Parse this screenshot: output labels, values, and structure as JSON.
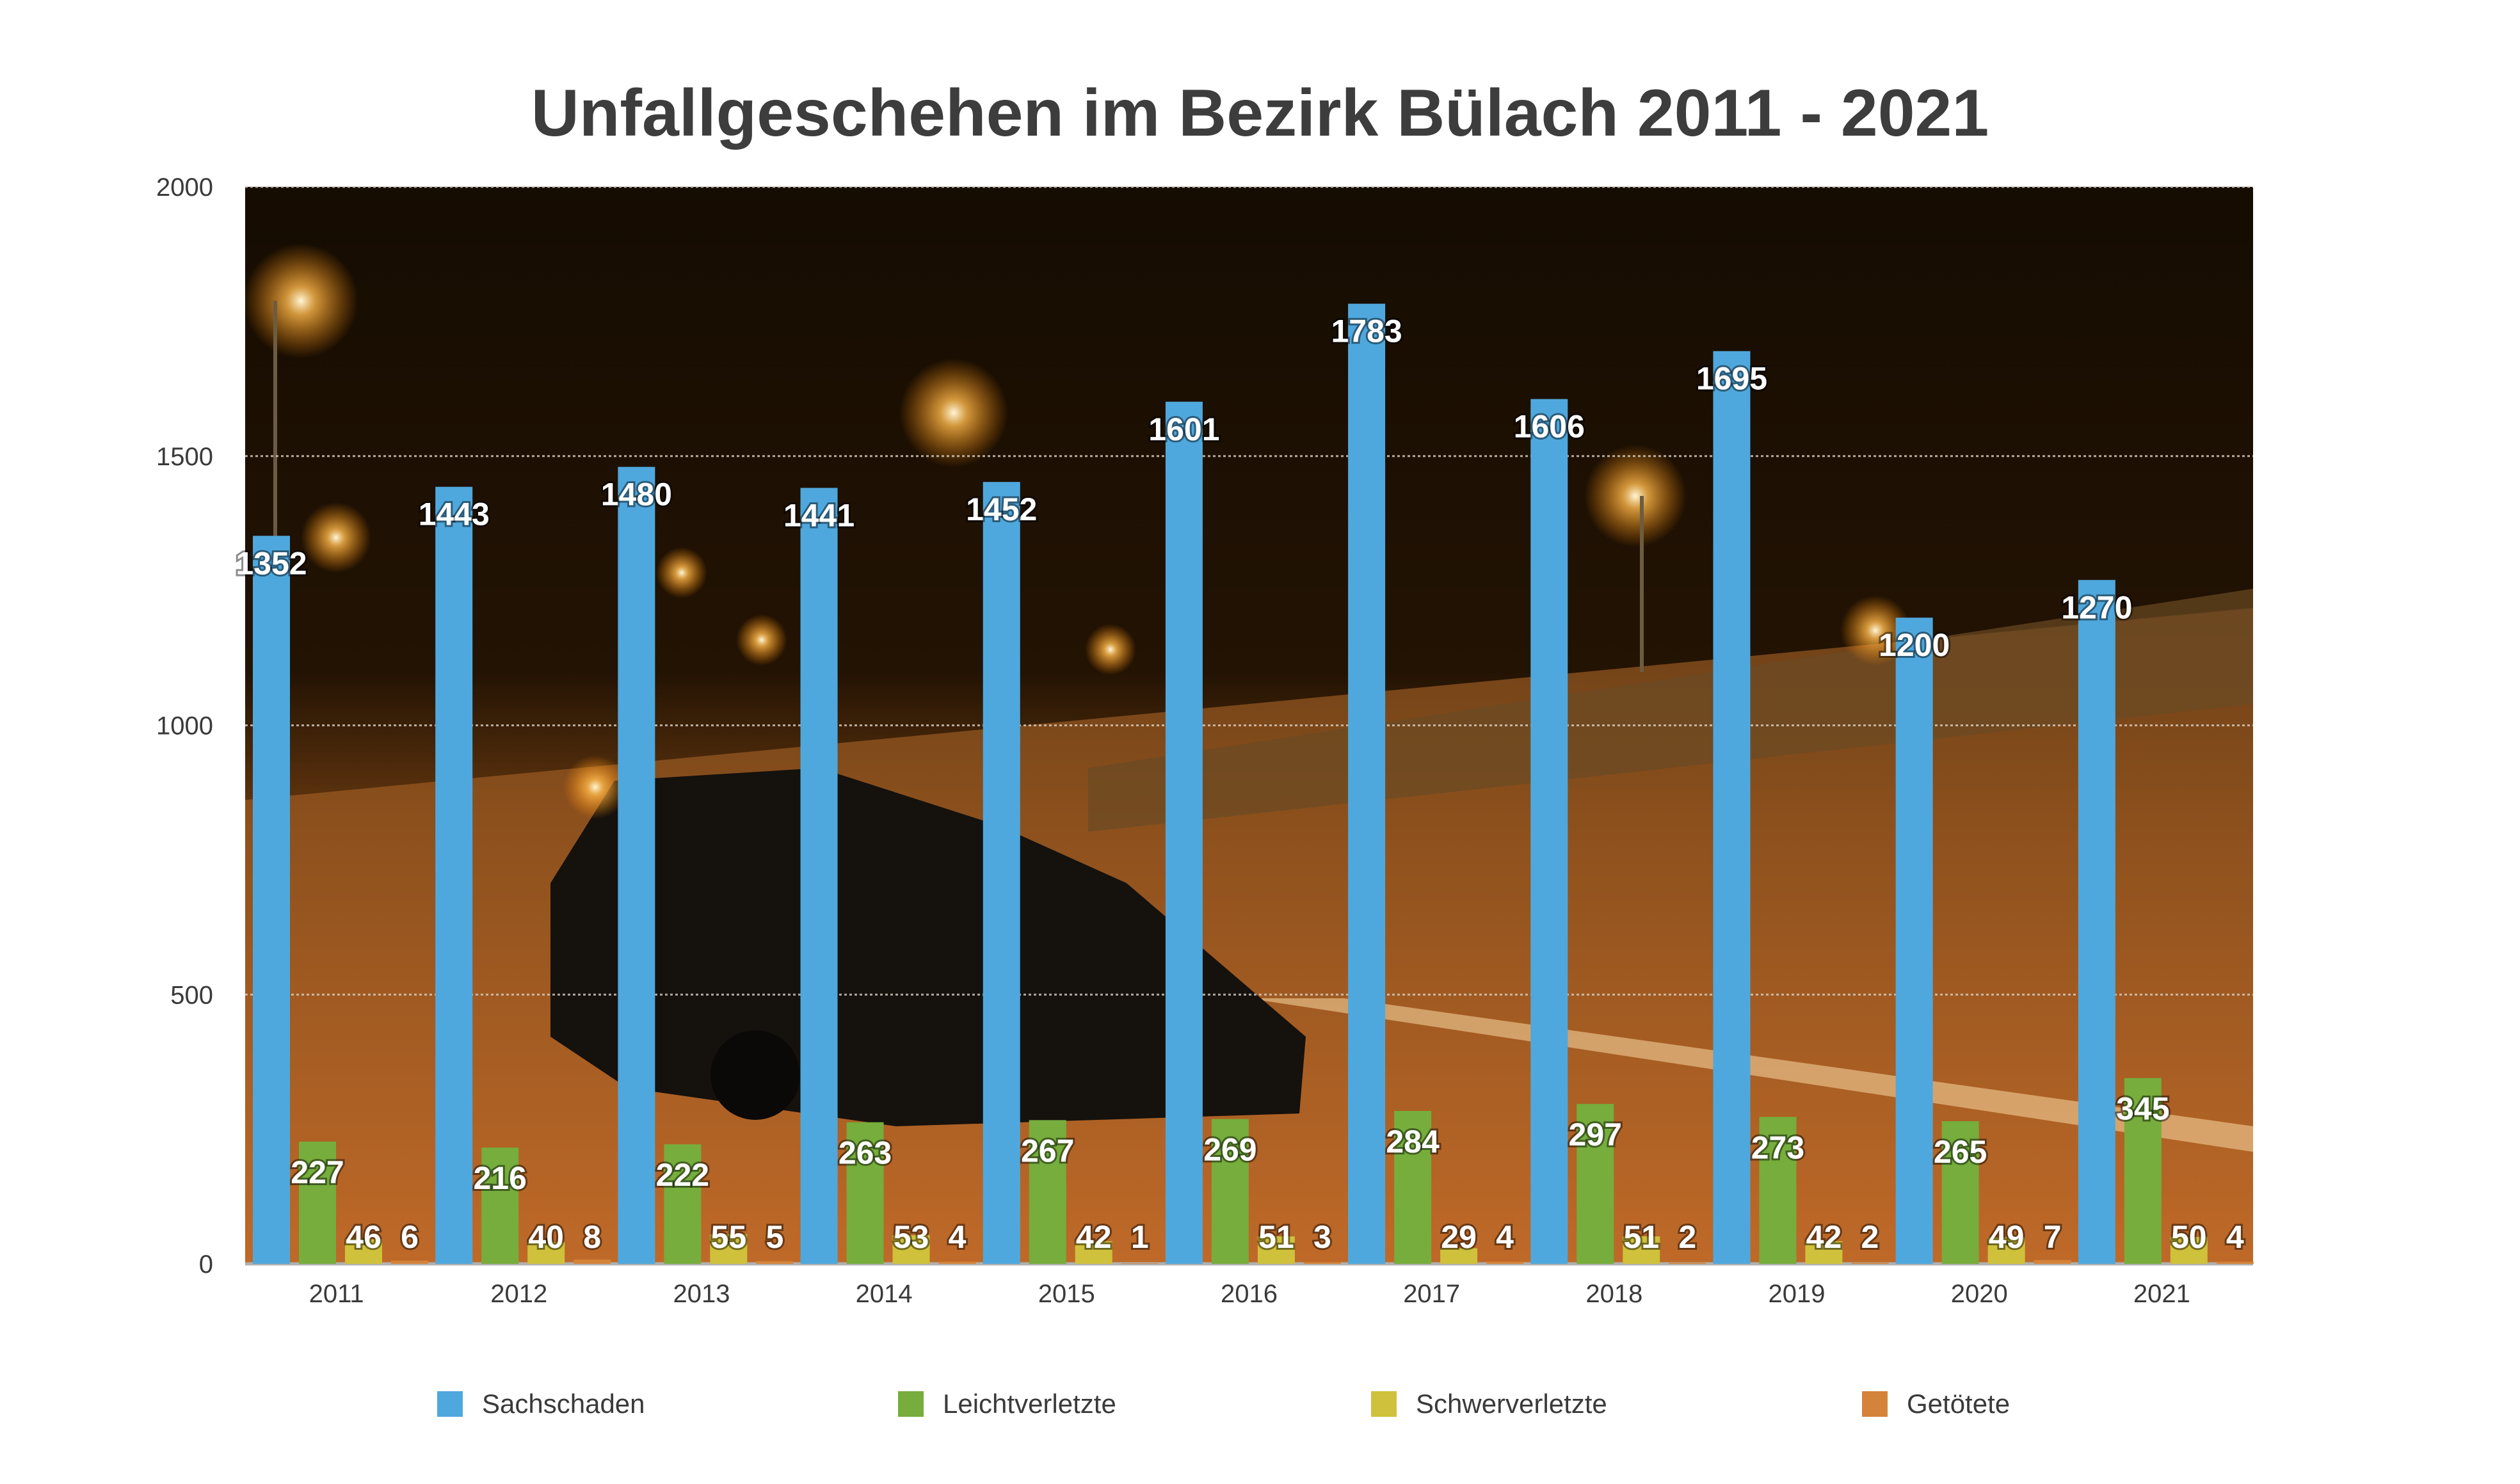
{
  "chart_data": {
    "type": "bar",
    "title": "Unfallgeschehen im Bezirk Bülach 2011 - 2021",
    "xlabel": "",
    "ylabel": "",
    "ylim": [
      0,
      2000
    ],
    "yticks": [
      0,
      500,
      1000,
      1500,
      2000
    ],
    "grid": true,
    "legend_position": "bottom",
    "background": "night photo of a car accident on a highway",
    "categories": [
      "2011",
      "2012",
      "2013",
      "2014",
      "2015",
      "2016",
      "2017",
      "2018",
      "2019",
      "2020",
      "2021"
    ],
    "series": [
      {
        "name": "Sachschaden",
        "color": "#4fa8dd",
        "values": [
          1352,
          1443,
          1480,
          1441,
          1452,
          1601,
          1783,
          1606,
          1695,
          1200,
          1270
        ]
      },
      {
        "name": "Leichtverletzte",
        "color": "#76ad3c",
        "values": [
          227,
          216,
          222,
          263,
          267,
          269,
          284,
          297,
          273,
          265,
          345
        ]
      },
      {
        "name": "Schwerverletzte",
        "color": "#cfc13b",
        "values": [
          46,
          40,
          55,
          53,
          42,
          51,
          29,
          51,
          42,
          49,
          50
        ]
      },
      {
        "name": "Getötete",
        "color": "#d4843a",
        "values": [
          6,
          8,
          5,
          4,
          1,
          3,
          4,
          2,
          2,
          7,
          4
        ]
      }
    ]
  }
}
